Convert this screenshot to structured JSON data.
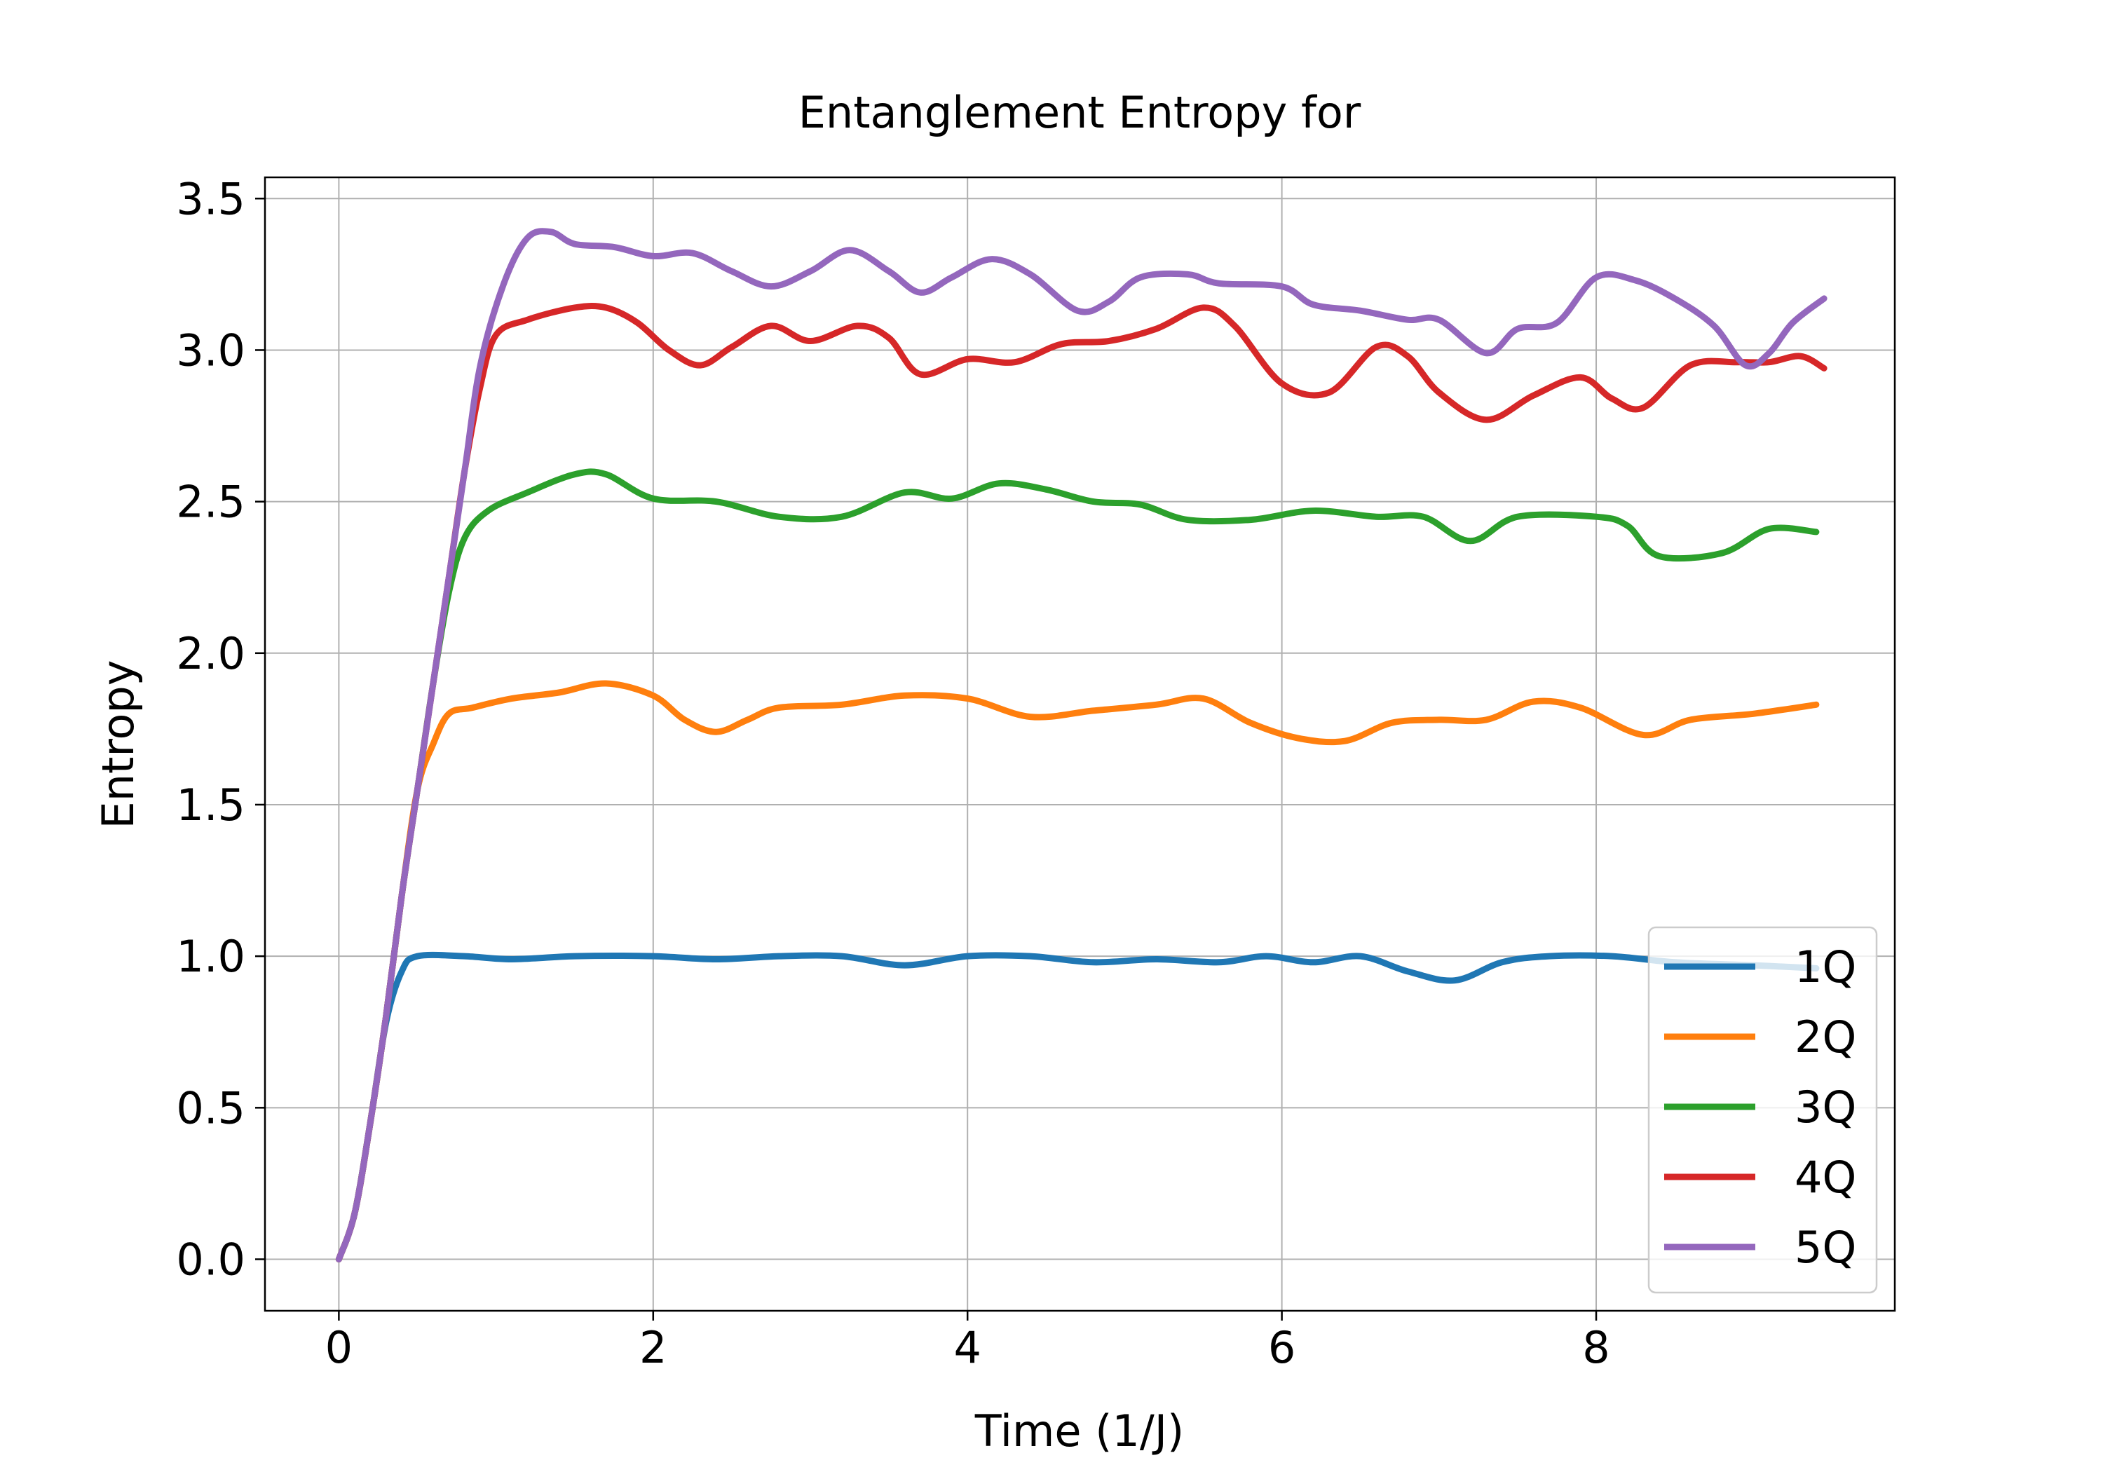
{
  "chart_data": {
    "type": "line",
    "title": "Entanglement Entropy for",
    "xlabel": "Time (1/J)",
    "ylabel": "Entropy",
    "xlim": [
      -0.47,
      9.9
    ],
    "ylim": [
      -0.17,
      3.57
    ],
    "xticks": [
      0,
      2,
      4,
      6,
      8
    ],
    "xtick_labels": [
      "0",
      "2",
      "4",
      "6",
      "8"
    ],
    "yticks": [
      0.0,
      0.5,
      1.0,
      1.5,
      2.0,
      2.5,
      3.0,
      3.5
    ],
    "ytick_labels": [
      "0.0",
      "0.5",
      "1.0",
      "1.5",
      "2.0",
      "2.5",
      "3.0",
      "3.5"
    ],
    "grid": true,
    "legend_position": "lower-right",
    "series": [
      {
        "name": "1Q",
        "color": "#1f77b4",
        "points": [
          [
            0,
            0
          ],
          [
            0.1,
            0.15
          ],
          [
            0.2,
            0.45
          ],
          [
            0.3,
            0.78
          ],
          [
            0.4,
            0.95
          ],
          [
            0.5,
            1.0
          ],
          [
            0.8,
            1.0
          ],
          [
            1.1,
            0.99
          ],
          [
            1.5,
            1.0
          ],
          [
            2.0,
            1.0
          ],
          [
            2.4,
            0.99
          ],
          [
            2.8,
            1.0
          ],
          [
            3.2,
            1.0
          ],
          [
            3.6,
            0.97
          ],
          [
            4.0,
            1.0
          ],
          [
            4.4,
            1.0
          ],
          [
            4.8,
            0.98
          ],
          [
            5.2,
            0.99
          ],
          [
            5.6,
            0.98
          ],
          [
            5.9,
            1.0
          ],
          [
            6.2,
            0.98
          ],
          [
            6.5,
            1.0
          ],
          [
            6.8,
            0.95
          ],
          [
            7.1,
            0.92
          ],
          [
            7.4,
            0.98
          ],
          [
            7.7,
            1.0
          ],
          [
            8.1,
            1.0
          ],
          [
            8.5,
            0.98
          ],
          [
            9.0,
            0.97
          ],
          [
            9.4,
            0.96
          ]
        ]
      },
      {
        "name": "2Q",
        "color": "#ff7f0e",
        "points": [
          [
            0,
            0
          ],
          [
            0.1,
            0.15
          ],
          [
            0.2,
            0.45
          ],
          [
            0.3,
            0.8
          ],
          [
            0.4,
            1.2
          ],
          [
            0.5,
            1.55
          ],
          [
            0.6,
            1.7
          ],
          [
            0.7,
            1.8
          ],
          [
            0.85,
            1.82
          ],
          [
            1.1,
            1.85
          ],
          [
            1.4,
            1.87
          ],
          [
            1.7,
            1.9
          ],
          [
            2.0,
            1.86
          ],
          [
            2.2,
            1.78
          ],
          [
            2.4,
            1.74
          ],
          [
            2.6,
            1.78
          ],
          [
            2.8,
            1.82
          ],
          [
            3.2,
            1.83
          ],
          [
            3.6,
            1.86
          ],
          [
            4.0,
            1.85
          ],
          [
            4.4,
            1.79
          ],
          [
            4.8,
            1.81
          ],
          [
            5.2,
            1.83
          ],
          [
            5.5,
            1.85
          ],
          [
            5.8,
            1.77
          ],
          [
            6.1,
            1.72
          ],
          [
            6.4,
            1.71
          ],
          [
            6.7,
            1.77
          ],
          [
            7.0,
            1.78
          ],
          [
            7.3,
            1.78
          ],
          [
            7.6,
            1.84
          ],
          [
            7.9,
            1.82
          ],
          [
            8.3,
            1.73
          ],
          [
            8.6,
            1.78
          ],
          [
            9.0,
            1.8
          ],
          [
            9.4,
            1.83
          ]
        ]
      },
      {
        "name": "3Q",
        "color": "#2ca02c",
        "points": [
          [
            0,
            0
          ],
          [
            0.1,
            0.15
          ],
          [
            0.2,
            0.45
          ],
          [
            0.3,
            0.8
          ],
          [
            0.4,
            1.2
          ],
          [
            0.5,
            1.55
          ],
          [
            0.6,
            1.9
          ],
          [
            0.7,
            2.2
          ],
          [
            0.8,
            2.38
          ],
          [
            0.95,
            2.47
          ],
          [
            1.2,
            2.53
          ],
          [
            1.5,
            2.59
          ],
          [
            1.7,
            2.59
          ],
          [
            2.0,
            2.51
          ],
          [
            2.4,
            2.5
          ],
          [
            2.8,
            2.45
          ],
          [
            3.2,
            2.45
          ],
          [
            3.6,
            2.53
          ],
          [
            3.9,
            2.51
          ],
          [
            4.2,
            2.56
          ],
          [
            4.5,
            2.54
          ],
          [
            4.8,
            2.5
          ],
          [
            5.1,
            2.49
          ],
          [
            5.4,
            2.44
          ],
          [
            5.8,
            2.44
          ],
          [
            6.2,
            2.47
          ],
          [
            6.6,
            2.45
          ],
          [
            6.9,
            2.45
          ],
          [
            7.2,
            2.37
          ],
          [
            7.5,
            2.45
          ],
          [
            8.0,
            2.45
          ],
          [
            8.2,
            2.42
          ],
          [
            8.4,
            2.32
          ],
          [
            8.8,
            2.33
          ],
          [
            9.1,
            2.41
          ],
          [
            9.4,
            2.4
          ]
        ]
      },
      {
        "name": "4Q",
        "color": "#d62728",
        "points": [
          [
            0,
            0
          ],
          [
            0.1,
            0.15
          ],
          [
            0.2,
            0.45
          ],
          [
            0.3,
            0.8
          ],
          [
            0.4,
            1.2
          ],
          [
            0.5,
            1.55
          ],
          [
            0.6,
            1.9
          ],
          [
            0.7,
            2.25
          ],
          [
            0.8,
            2.6
          ],
          [
            0.9,
            2.88
          ],
          [
            1.0,
            3.05
          ],
          [
            1.2,
            3.1
          ],
          [
            1.5,
            3.14
          ],
          [
            1.7,
            3.14
          ],
          [
            1.9,
            3.09
          ],
          [
            2.1,
            3.0
          ],
          [
            2.3,
            2.95
          ],
          [
            2.5,
            3.01
          ],
          [
            2.75,
            3.08
          ],
          [
            3.0,
            3.03
          ],
          [
            3.3,
            3.08
          ],
          [
            3.5,
            3.04
          ],
          [
            3.7,
            2.92
          ],
          [
            4.0,
            2.97
          ],
          [
            4.3,
            2.96
          ],
          [
            4.6,
            3.02
          ],
          [
            4.9,
            3.03
          ],
          [
            5.2,
            3.07
          ],
          [
            5.5,
            3.14
          ],
          [
            5.7,
            3.08
          ],
          [
            6.0,
            2.89
          ],
          [
            6.3,
            2.86
          ],
          [
            6.6,
            3.01
          ],
          [
            6.8,
            2.98
          ],
          [
            7.0,
            2.86
          ],
          [
            7.3,
            2.77
          ],
          [
            7.6,
            2.85
          ],
          [
            7.9,
            2.91
          ],
          [
            8.1,
            2.84
          ],
          [
            8.3,
            2.81
          ],
          [
            8.6,
            2.95
          ],
          [
            8.9,
            2.96
          ],
          [
            9.1,
            2.96
          ],
          [
            9.3,
            2.98
          ],
          [
            9.45,
            2.94
          ]
        ]
      },
      {
        "name": "5Q",
        "color": "#9467bd",
        "points": [
          [
            0,
            0
          ],
          [
            0.1,
            0.15
          ],
          [
            0.2,
            0.45
          ],
          [
            0.3,
            0.8
          ],
          [
            0.4,
            1.2
          ],
          [
            0.5,
            1.55
          ],
          [
            0.6,
            1.9
          ],
          [
            0.7,
            2.25
          ],
          [
            0.8,
            2.6
          ],
          [
            0.9,
            2.95
          ],
          [
            1.05,
            3.22
          ],
          [
            1.2,
            3.37
          ],
          [
            1.35,
            3.39
          ],
          [
            1.5,
            3.35
          ],
          [
            1.75,
            3.34
          ],
          [
            2.0,
            3.31
          ],
          [
            2.25,
            3.32
          ],
          [
            2.5,
            3.26
          ],
          [
            2.75,
            3.21
          ],
          [
            3.0,
            3.26
          ],
          [
            3.25,
            3.33
          ],
          [
            3.5,
            3.26
          ],
          [
            3.7,
            3.19
          ],
          [
            3.9,
            3.24
          ],
          [
            4.15,
            3.3
          ],
          [
            4.4,
            3.25
          ],
          [
            4.7,
            3.13
          ],
          [
            4.9,
            3.16
          ],
          [
            5.1,
            3.24
          ],
          [
            5.4,
            3.25
          ],
          [
            5.6,
            3.22
          ],
          [
            6.0,
            3.21
          ],
          [
            6.2,
            3.15
          ],
          [
            6.5,
            3.13
          ],
          [
            6.8,
            3.1
          ],
          [
            7.0,
            3.1
          ],
          [
            7.3,
            2.99
          ],
          [
            7.5,
            3.07
          ],
          [
            7.75,
            3.09
          ],
          [
            8.0,
            3.24
          ],
          [
            8.25,
            3.23
          ],
          [
            8.5,
            3.17
          ],
          [
            8.75,
            3.08
          ],
          [
            8.95,
            2.95
          ],
          [
            9.1,
            2.99
          ],
          [
            9.25,
            3.09
          ],
          [
            9.45,
            3.17
          ]
        ]
      }
    ]
  }
}
